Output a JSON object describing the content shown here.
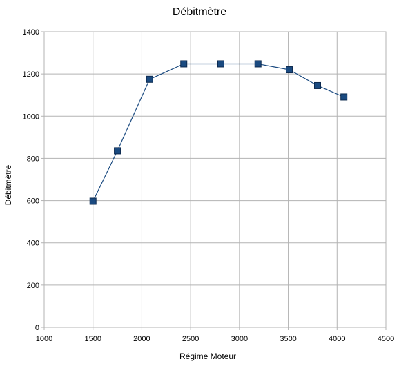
{
  "chart_data": {
    "type": "line",
    "title": "Débitmètre",
    "xlabel": "Régime Moteur",
    "ylabel": "Débitmètre",
    "xlim": [
      1000,
      4500
    ],
    "ylim": [
      0,
      1400
    ],
    "x_ticks": [
      "1000",
      "1500",
      "2000",
      "2500",
      "3000",
      "3500",
      "4000",
      "4500"
    ],
    "y_ticks": [
      "0",
      "200",
      "400",
      "600",
      "800",
      "1000",
      "1200",
      "1400"
    ],
    "grid": true,
    "legend": "none",
    "series": [
      {
        "color": "#1a4a80",
        "marker": "square",
        "x": [
          1500,
          1750,
          2080,
          2430,
          2810,
          3190,
          3510,
          3800,
          4070
        ],
        "y": [
          597,
          836,
          1175,
          1248,
          1248,
          1248,
          1220,
          1145,
          1091
        ]
      }
    ]
  }
}
